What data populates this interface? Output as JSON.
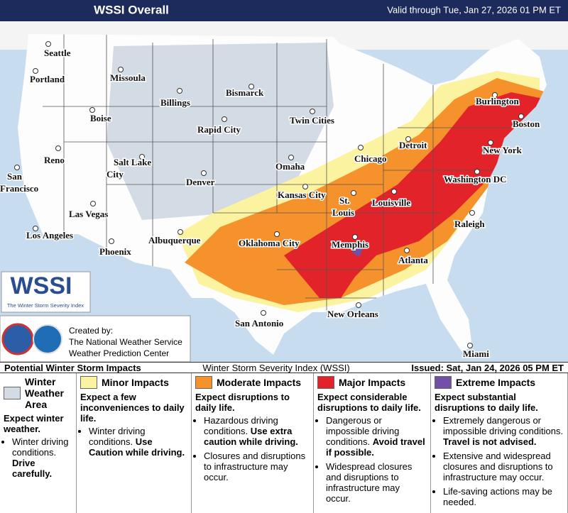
{
  "header": {
    "title": "WSSI Overall",
    "valid": "Valid through Tue, Jan 27, 2026 01 PM ET"
  },
  "cities": [
    [
      "Seattle"
    ],
    [
      "Portland"
    ],
    [
      "Missoula"
    ],
    [
      "Boise"
    ],
    [
      "Billings"
    ],
    [
      "Bismarck"
    ],
    [
      "Rapid City"
    ],
    [
      "Twin Cities"
    ],
    [
      "Burlington"
    ],
    [
      "Boston"
    ],
    [
      "Reno"
    ],
    [
      "San",
      "Francisco"
    ],
    [
      "Salt Lake",
      "City"
    ],
    [
      "Denver"
    ],
    [
      "Omaha"
    ],
    [
      "Chicago"
    ],
    [
      "Detroit"
    ],
    [
      "New York"
    ],
    [
      "Kansas City"
    ],
    [
      "St.",
      "Louis"
    ],
    [
      "Louisville"
    ],
    [
      "Washington DC"
    ],
    [
      "Las Vegas"
    ],
    [
      "Los Angeles"
    ],
    [
      "Phoenix"
    ],
    [
      "Albuquerque"
    ],
    [
      "Oklahoma City"
    ],
    [
      "Memphis"
    ],
    [
      "Raleigh"
    ],
    [
      "Atlanta"
    ],
    [
      "San Antonio"
    ],
    [
      "New Orleans"
    ],
    [
      "Miami"
    ]
  ],
  "logo": {
    "title": "WSSI",
    "subtitle": "The Winter Storm Severity Index"
  },
  "credit": {
    "lines": [
      "Created by:",
      "The National Weather Service",
      "Weather Prediction Center"
    ]
  },
  "legend": {
    "title": "Potential Winter Storm Impacts",
    "center": "Winter Storm Severity Index (WSSI)",
    "issued": "Issued: Sat, Jan 24, 2026 05 PM ET",
    "items": [
      {
        "title": "Winter Weather Area",
        "color": "#d3dce5",
        "headline": "Expect winter weather.",
        "bullets": [
          {
            "text": "Winter driving conditions.",
            "bold": "Drive carefully."
          }
        ]
      },
      {
        "title": "Minor Impacts",
        "color": "#fbf3a0",
        "headline": "Expect a few inconveniences to daily life.",
        "bullets": [
          {
            "text": "Winter driving conditions.",
            "bold": "Use Caution while driving."
          }
        ]
      },
      {
        "title": "Moderate Impacts",
        "color": "#f5922c",
        "headline": "Expect disruptions to daily life.",
        "bullets": [
          {
            "text": "Hazardous driving conditions.",
            "bold": "Use extra caution while driving."
          },
          {
            "text": "Closures and disruptions to infrastructure may occur."
          }
        ]
      },
      {
        "title": "Major Impacts",
        "color": "#e2232a",
        "headline": "Expect considerable disruptions to daily life.",
        "bullets": [
          {
            "text": "Dangerous or impossible driving conditions.",
            "bold": "Avoid travel if possible."
          },
          {
            "text": "Widespread closures and disruptions to infrastructure may occur."
          }
        ]
      },
      {
        "title": "Extreme Impacts",
        "color": "#7250a8",
        "headline": "Expect substantial disruptions to daily life.",
        "bullets": [
          {
            "text": "Extremely dangerous or impossible driving conditions.",
            "bold": "Travel is not advised."
          },
          {
            "text": "Extensive and widespread closures and disruptions to infrastructure may occur."
          },
          {
            "text": "Life-saving actions may be needed."
          }
        ]
      }
    ]
  }
}
